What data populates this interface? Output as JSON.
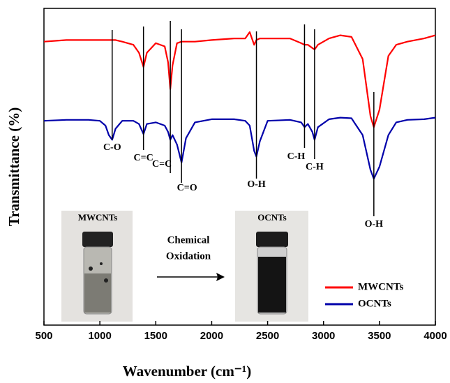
{
  "chart_data": {
    "type": "line",
    "xlabel": "Wavenumber (cm⁻¹)",
    "ylabel": "Transmittance (%)",
    "x": [
      500,
      700,
      900,
      1000,
      1050,
      1080,
      1110,
      1140,
      1200,
      1300,
      1350,
      1390,
      1420,
      1500,
      1580,
      1610,
      1630,
      1650,
      1690,
      1730,
      1770,
      1850,
      2000,
      2200,
      2300,
      2340,
      2360,
      2380,
      2400,
      2430,
      2500,
      2700,
      2800,
      2830,
      2860,
      2900,
      2920,
      2950,
      3050,
      3150,
      3250,
      3350,
      3420,
      3450,
      3500,
      3580,
      3650,
      3750,
      3900,
      4000
    ],
    "series": [
      {
        "name": "MWCNTs",
        "color": "#ff0000",
        "values": [
          89.5,
          90,
          90,
          90,
          90,
          90,
          90,
          90,
          89.5,
          88.5,
          86,
          81.5,
          86,
          89,
          88,
          83,
          74.5,
          82,
          89,
          89.5,
          89.5,
          89.5,
          90,
          90.5,
          90.5,
          92.5,
          90.5,
          88.5,
          90,
          90.5,
          90.5,
          90.5,
          89,
          88.5,
          88.5,
          87.5,
          87,
          88.5,
          90.5,
          91.5,
          91,
          84,
          66,
          62.5,
          68,
          85,
          88.5,
          89.5,
          90.5,
          91.5
        ]
      },
      {
        "name": "OCNTs",
        "color": "#0000aa",
        "values": [
          64.5,
          64.8,
          64.8,
          64.5,
          63,
          60,
          58.5,
          62,
          64.5,
          64.5,
          63.5,
          60.3,
          63.5,
          64,
          63,
          61,
          58.5,
          60,
          57,
          51.3,
          59,
          64,
          65,
          65,
          64.5,
          63,
          59,
          55,
          53.2,
          58,
          64.5,
          64.8,
          64,
          62.5,
          63.5,
          61,
          58.5,
          62.5,
          65,
          65.5,
          65.3,
          60,
          49,
          46.2,
          50,
          60,
          64,
          64.8,
          65,
          65.5
        ]
      }
    ],
    "xlim": [
      500,
      4000
    ],
    "xticks": [
      500,
      1000,
      1500,
      2000,
      2500,
      3000,
      3500,
      4000
    ],
    "ylim": [
      0,
      100
    ],
    "legend": "lower right",
    "annotations": [
      {
        "text": "C-O",
        "x": 1110
      },
      {
        "text": "C=C",
        "x": 1390
      },
      {
        "text": "C=C",
        "x": 1630
      },
      {
        "text": "C=O",
        "x": 1730
      },
      {
        "text": "O-H",
        "x": 2400
      },
      {
        "text": "C-H",
        "x": 2830
      },
      {
        "text": "C-H",
        "x": 2920
      },
      {
        "text": "O-H",
        "x": 3450
      }
    ],
    "inset": {
      "before": "MWCNTs",
      "after": "OCNTs",
      "arrow_text": [
        "Chemical",
        "Oxidation"
      ]
    }
  }
}
